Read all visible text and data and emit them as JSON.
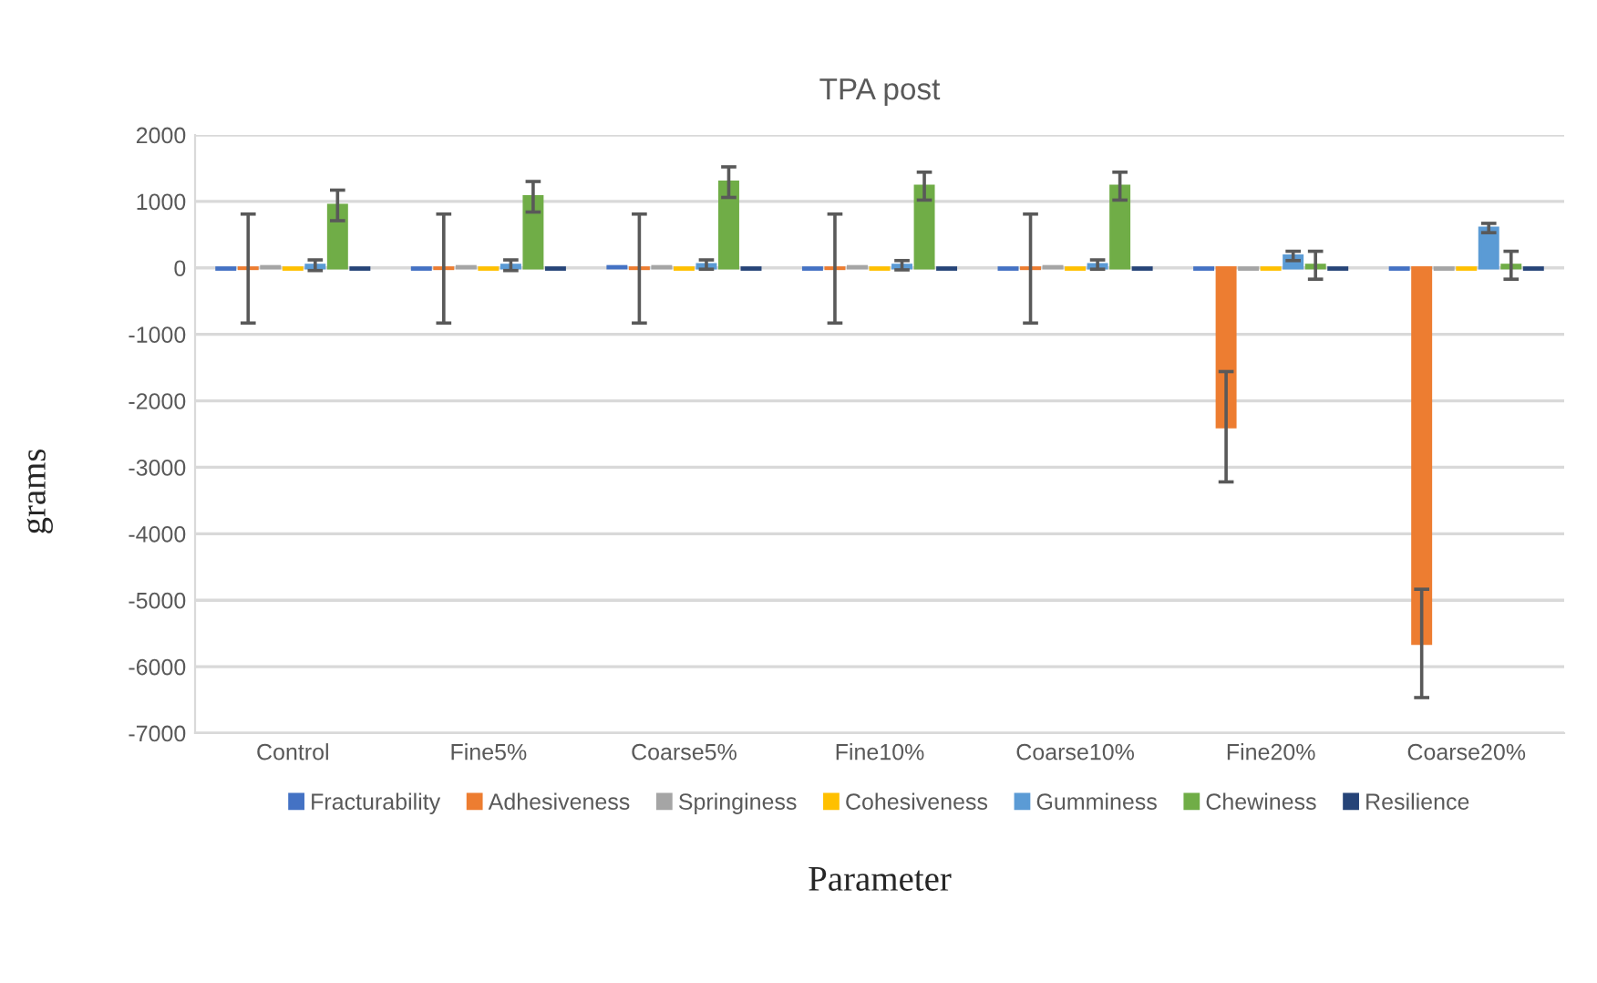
{
  "chart_data": {
    "type": "bar",
    "title": "TPA post",
    "xlabel": "Parameter",
    "ylabel": "grams",
    "categories": [
      "Control",
      "Fine5%",
      "Coarse5%",
      "Fine10%",
      "Coarse10%",
      "Fine20%",
      "Coarse20%"
    ],
    "series": [
      {
        "name": "Fracturability",
        "color": "#4472c4",
        "values": [
          -20,
          -20,
          20,
          -20,
          -20,
          -20,
          -20
        ]
      },
      {
        "name": "Adhesiveness",
        "color": "#ed7d31",
        "values": [
          -10,
          -10,
          -10,
          -10,
          -10,
          -2390,
          -5650
        ],
        "errors": [
          820,
          820,
          820,
          820,
          820,
          830,
          815
        ]
      },
      {
        "name": "Springiness",
        "color": "#a5a5a5",
        "values": [
          20,
          20,
          20,
          20,
          20,
          -20,
          -20
        ]
      },
      {
        "name": "Cohesiveness",
        "color": "#ffc000",
        "values": [
          -20,
          -20,
          -20,
          -20,
          -20,
          -20,
          -20
        ]
      },
      {
        "name": "Gumminess",
        "color": "#5b9bd5",
        "values": [
          40,
          40,
          50,
          40,
          50,
          180,
          600
        ],
        "errors": [
          80,
          80,
          70,
          70,
          70,
          70,
          70
        ]
      },
      {
        "name": "Chewiness",
        "color": "#70ad47",
        "values": [
          940,
          1070,
          1290,
          1230,
          1230,
          40,
          40
        ],
        "errors": [
          230,
          230,
          230,
          210,
          210,
          210,
          210
        ]
      },
      {
        "name": "Resilience",
        "color": "#264478",
        "values": [
          -20,
          -20,
          -20,
          -20,
          -20,
          -20,
          -20
        ]
      }
    ],
    "ylim": [
      -7000,
      2000
    ],
    "yticks": [
      -7000,
      -6000,
      -5000,
      -4000,
      -3000,
      -2000,
      -1000,
      0,
      1000,
      2000
    ],
    "grid": "y",
    "legend": "bottom"
  }
}
